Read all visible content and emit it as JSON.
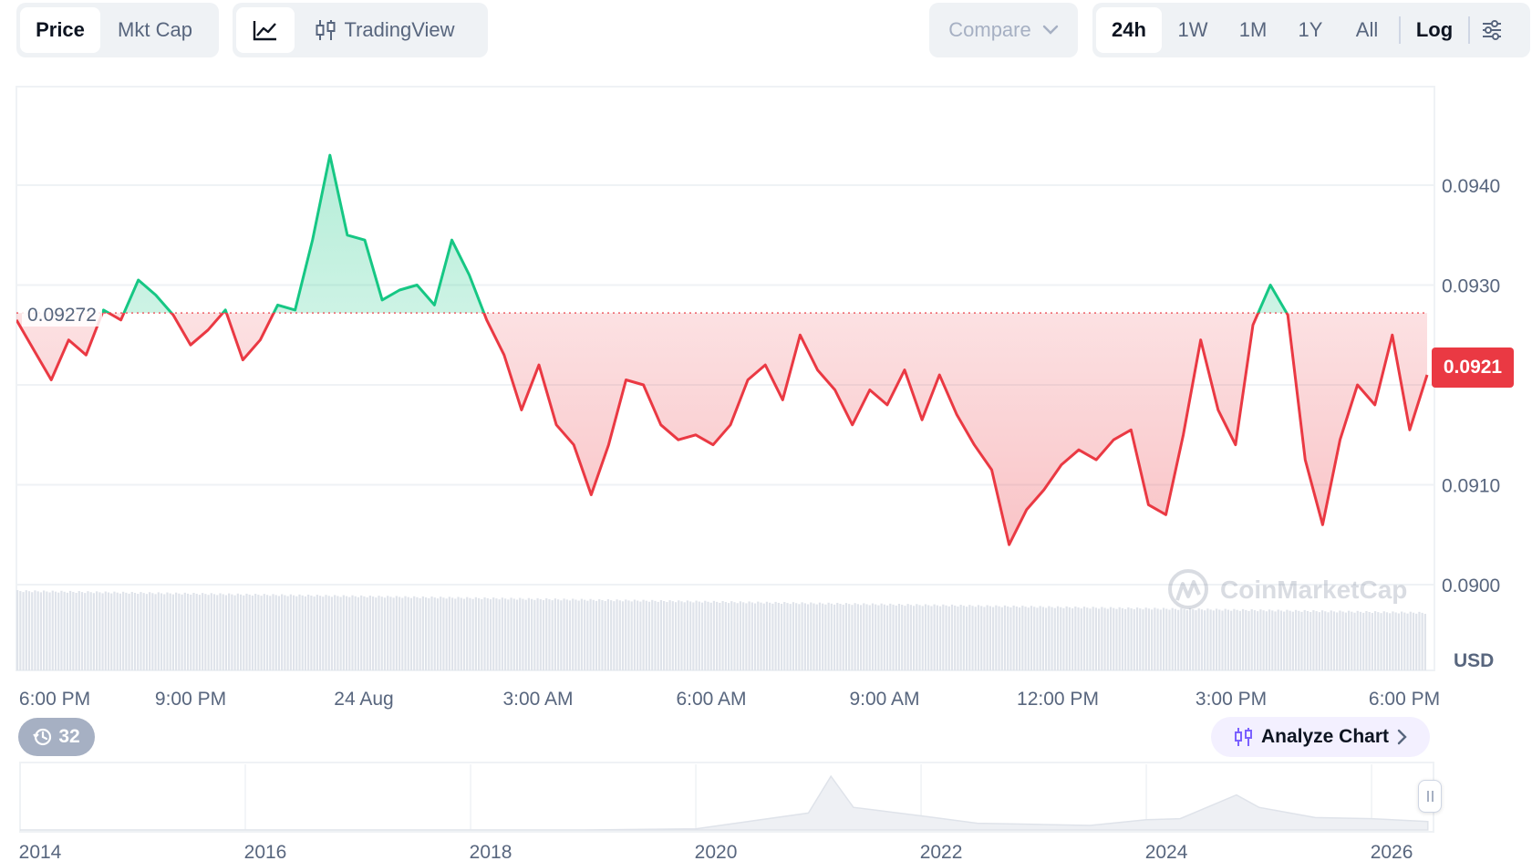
{
  "toolbar": {
    "metric_tabs": [
      {
        "label": "Price",
        "active": true
      },
      {
        "label": "Mkt Cap",
        "active": false
      }
    ],
    "chart_type": {
      "line_icon": "line-chart-icon",
      "tradingview_label": "TradingView",
      "tradingview_icon": "candlestick-icon"
    },
    "compare": {
      "label": "Compare",
      "icon": "chevron-down-icon"
    },
    "ranges": [
      {
        "label": "24h",
        "active": true
      },
      {
        "label": "1W",
        "active": false
      },
      {
        "label": "1M",
        "active": false
      },
      {
        "label": "1Y",
        "active": false
      },
      {
        "label": "All",
        "active": false
      }
    ],
    "log_label": "Log",
    "settings_icon": "sliders-icon"
  },
  "reference_price_label": "0.09272",
  "current_price_label": "0.0921",
  "currency_label": "USD",
  "watermark": "CoinMarketCap",
  "history_badge": {
    "icon": "history-icon",
    "count": "32"
  },
  "analyze_button": {
    "label": "Analyze Chart",
    "icon": "candlestick-icon",
    "arrow": "chevron-right-icon"
  },
  "colors": {
    "up": "#16c784",
    "down": "#ea3943",
    "grid": "#eff2f5",
    "axis_text": "#58667e"
  },
  "chart_data": [
    {
      "type": "area",
      "title": "",
      "xlabel": "",
      "ylabel": "USD",
      "ylim": [
        0.0893,
        0.095
      ],
      "y_ticks": [
        "0.0940",
        "0.0930",
        "0.0910",
        "0.0900"
      ],
      "x_ticks": [
        "6:00 PM",
        "9:00 PM",
        "24 Aug",
        "3:00 AM",
        "6:00 AM",
        "9:00 AM",
        "12:00 PM",
        "3:00 PM",
        "6:00 PM"
      ],
      "baseline": 0.09272,
      "grid": true,
      "x_hours": [
        0,
        0.3,
        0.6,
        0.9,
        1.2,
        1.5,
        1.8,
        2.1,
        2.4,
        2.7,
        3.0,
        3.3,
        3.6,
        3.9,
        4.2,
        4.5,
        4.8,
        5.1,
        5.4,
        5.7,
        6.0,
        6.3,
        6.6,
        6.9,
        7.2,
        7.5,
        7.8,
        8.1,
        8.4,
        8.7,
        9.0,
        9.3,
        9.6,
        9.9,
        10.2,
        10.5,
        10.8,
        11.1,
        11.4,
        11.7,
        12.0,
        12.3,
        12.6,
        12.9,
        13.2,
        13.5,
        13.8,
        14.1,
        14.4,
        14.7,
        15.0,
        15.3,
        15.6,
        15.9,
        16.2,
        16.5,
        16.8,
        17.1,
        17.4,
        17.7,
        18.0,
        18.3,
        18.6,
        18.9,
        19.2,
        19.5,
        19.8,
        20.1,
        20.4,
        20.7,
        21.0,
        21.3,
        21.6,
        21.9,
        22.2,
        22.5,
        22.8,
        23.1,
        23.4,
        23.7,
        24.0,
        24.3
      ],
      "price": [
        0.09265,
        0.09235,
        0.09205,
        0.09245,
        0.0923,
        0.09275,
        0.09265,
        0.09305,
        0.0929,
        0.0927,
        0.0924,
        0.09255,
        0.09275,
        0.09225,
        0.09245,
        0.0928,
        0.09275,
        0.09345,
        0.0943,
        0.0935,
        0.09345,
        0.09285,
        0.09295,
        0.093,
        0.0928,
        0.09345,
        0.0931,
        0.09265,
        0.0923,
        0.09175,
        0.0922,
        0.0916,
        0.0914,
        0.0909,
        0.0914,
        0.09205,
        0.092,
        0.0916,
        0.09145,
        0.0915,
        0.0914,
        0.0916,
        0.09205,
        0.0922,
        0.09185,
        0.0925,
        0.09215,
        0.09195,
        0.0916,
        0.09195,
        0.0918,
        0.09215,
        0.09165,
        0.0921,
        0.0917,
        0.0914,
        0.09115,
        0.0904,
        0.09075,
        0.09095,
        0.0912,
        0.09135,
        0.09125,
        0.09145,
        0.09155,
        0.0908,
        0.0907,
        0.0915,
        0.09245,
        0.09175,
        0.0914,
        0.0926,
        0.093,
        0.0927,
        0.09125,
        0.0906,
        0.09145,
        0.092,
        0.0918,
        0.0925,
        0.09155,
        0.0921
      ],
      "volume_series": "gray bars along bottom, roughly constant"
    },
    {
      "type": "area",
      "title": "",
      "x_ticks": [
        "2014",
        "2016",
        "2018",
        "2020",
        "2022",
        "2024",
        "2026"
      ],
      "note_series": "mini overview history",
      "years": [
        2014,
        2015,
        2016,
        2017,
        2018,
        2019,
        2020,
        2021,
        2021.2,
        2021.4,
        2021.6,
        2022,
        2022.5,
        2023,
        2023.5,
        2024,
        2024.3,
        2024.8,
        2025,
        2025.5,
        2026,
        2026.5
      ],
      "values": [
        0,
        0,
        0,
        0,
        0,
        0,
        0.02,
        0.3,
        0.95,
        0.4,
        0.35,
        0.25,
        0.12,
        0.1,
        0.08,
        0.18,
        0.2,
        0.62,
        0.4,
        0.22,
        0.2,
        0.15
      ]
    }
  ]
}
